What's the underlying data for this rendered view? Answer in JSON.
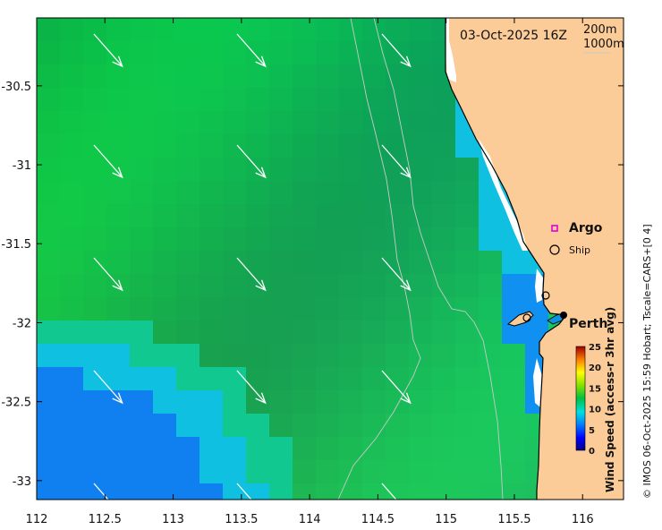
{
  "header": {
    "datetime": "03-Oct-2025 16Z"
  },
  "contour_legend": {
    "labels": [
      "200m",
      "1000m"
    ]
  },
  "axes": {
    "x_ticks": [
      "112",
      "112.5",
      "113",
      "113.5",
      "114",
      "114.5",
      "115",
      "115.5",
      "116"
    ],
    "y_ticks": [
      "-30.5",
      "-31",
      "-31.5",
      "-32",
      "-32.5",
      "-33"
    ]
  },
  "legend": {
    "argo_label": "Argo",
    "ship_label": "Ship"
  },
  "places": {
    "perth": "Perth"
  },
  "colorbar": {
    "label": "Wind Speed (access-r 3hr avg)",
    "ticks": [
      "25",
      "20",
      "15",
      "10",
      "5",
      "0"
    ],
    "range": [
      0,
      25
    ]
  },
  "credit": "© IMOS 06-Oct-2025 15:59 Hobart; Tscale=CARS+[0 4]",
  "colors": {
    "land": "#FBCB98",
    "ocean_dominant": "#10C050",
    "contour": "#C8C8C8",
    "argo_marker": "#E000E0"
  }
}
